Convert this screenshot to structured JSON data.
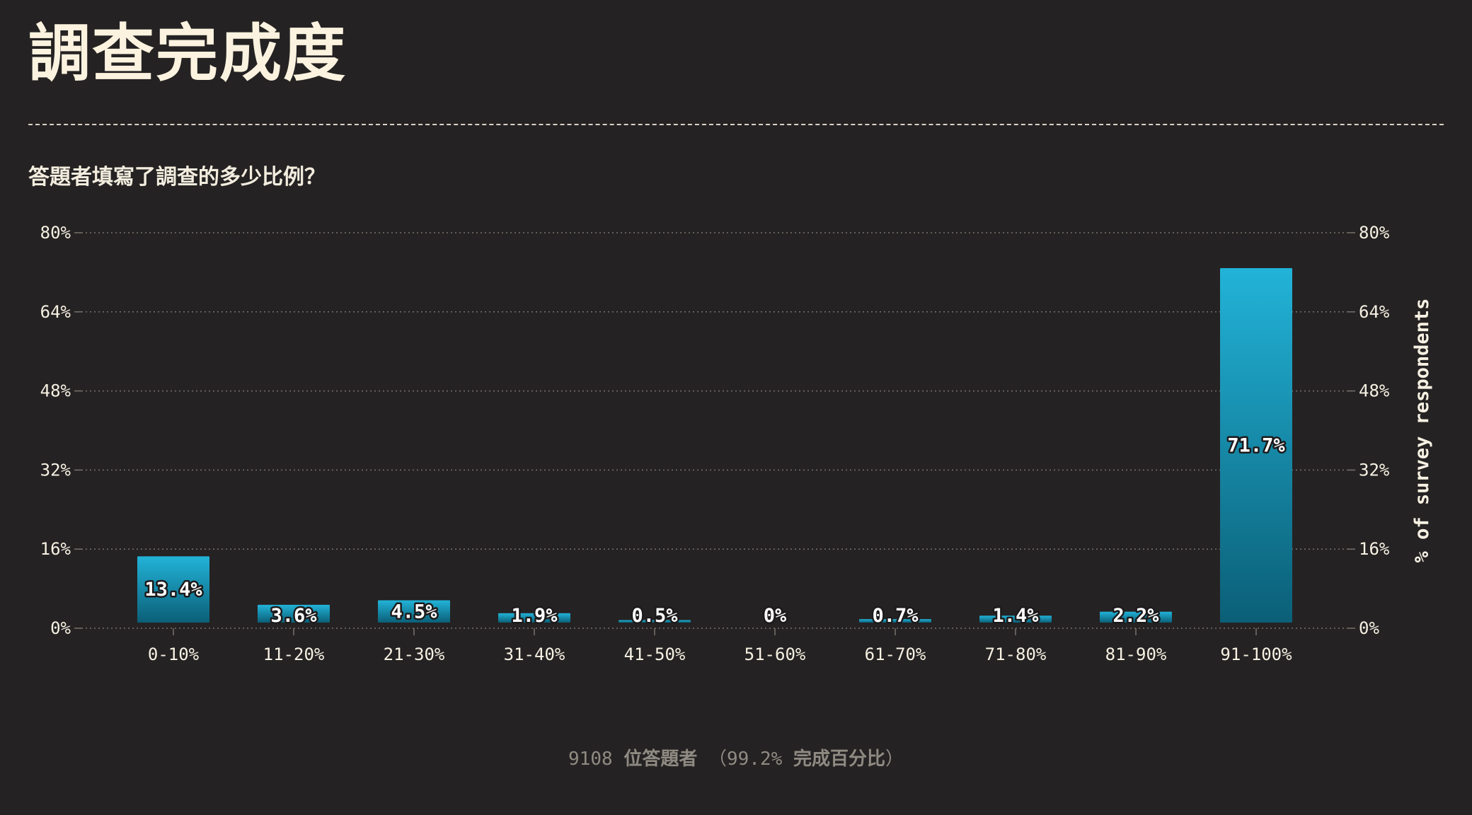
{
  "page": {
    "title": "調查完成度",
    "subtitle": "答題者填寫了調查的多少比例？"
  },
  "footer": {
    "respondents": "9108",
    "respondents_label": "位答題者",
    "paren_open": "（",
    "completion": "99.2%",
    "completion_label": "完成百分比",
    "paren_close": "）"
  },
  "colors": {
    "background": "#252223",
    "bar_top": "#22b3d8",
    "bar_bottom": "#0b5f77",
    "text": "#f7f1e3",
    "grid": "#77726b"
  },
  "chart_data": {
    "type": "bar",
    "categories": [
      "0-10%",
      "11-20%",
      "21-30%",
      "31-40%",
      "41-50%",
      "51-60%",
      "61-70%",
      "71-80%",
      "81-90%",
      "91-100%"
    ],
    "values": [
      13.4,
      3.6,
      4.5,
      1.9,
      0.5,
      0,
      0.7,
      1.4,
      2.2,
      71.7
    ],
    "value_labels": [
      "13.4%",
      "3.6%",
      "4.5%",
      "1.9%",
      "0.5%",
      "0%",
      "0.7%",
      "1.4%",
      "2.2%",
      "71.7%"
    ],
    "ylim": [
      0,
      80
    ],
    "yticks": [
      0,
      16,
      32,
      48,
      64,
      80
    ],
    "ytick_labels": [
      "0%",
      "16%",
      "32%",
      "48%",
      "64%",
      "80%"
    ],
    "ylabel_right": "% of survey respondents",
    "xlabel": "",
    "grid": true,
    "legend": "none"
  }
}
